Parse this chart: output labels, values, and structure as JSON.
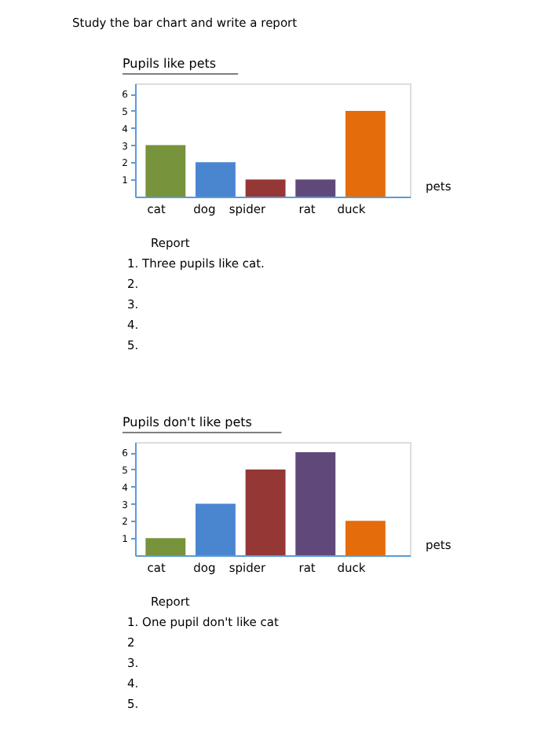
{
  "chart_data": [
    {
      "type": "bar",
      "title": "Pupils like pets",
      "xlabel": "pets",
      "categories": [
        "cat",
        "dog",
        "spider",
        "rat",
        "duck"
      ],
      "values": [
        3,
        2,
        1,
        1,
        5
      ],
      "colors": [
        "#77933c",
        "#4a86d0",
        "#953735",
        "#60497a",
        "#e46c0a"
      ],
      "ylim": [
        0,
        6.6
      ],
      "yticks": [
        1,
        2,
        3,
        4,
        5,
        6
      ],
      "grid": false,
      "annotations": [
        "Study the bar chart and write a report",
        "Report",
        "1. Three pupils like cat.",
        "2.",
        "3.",
        "4.",
        "5."
      ]
    },
    {
      "type": "bar",
      "title": "Pupils don't like pets",
      "xlabel": "pets",
      "categories": [
        "cat",
        "dog",
        "spider",
        "rat",
        "duck"
      ],
      "values": [
        1,
        3,
        5,
        6,
        2
      ],
      "colors": [
        "#77933c",
        "#4a86d0",
        "#953735",
        "#60497a",
        "#e46c0a"
      ],
      "ylim": [
        0,
        6.6
      ],
      "yticks": [
        1,
        2,
        3,
        4,
        5,
        6
      ],
      "grid": false,
      "annotations": [
        "Report",
        "1. One pupil don't like cat",
        "2",
        "3.",
        "4.",
        "5."
      ]
    }
  ]
}
